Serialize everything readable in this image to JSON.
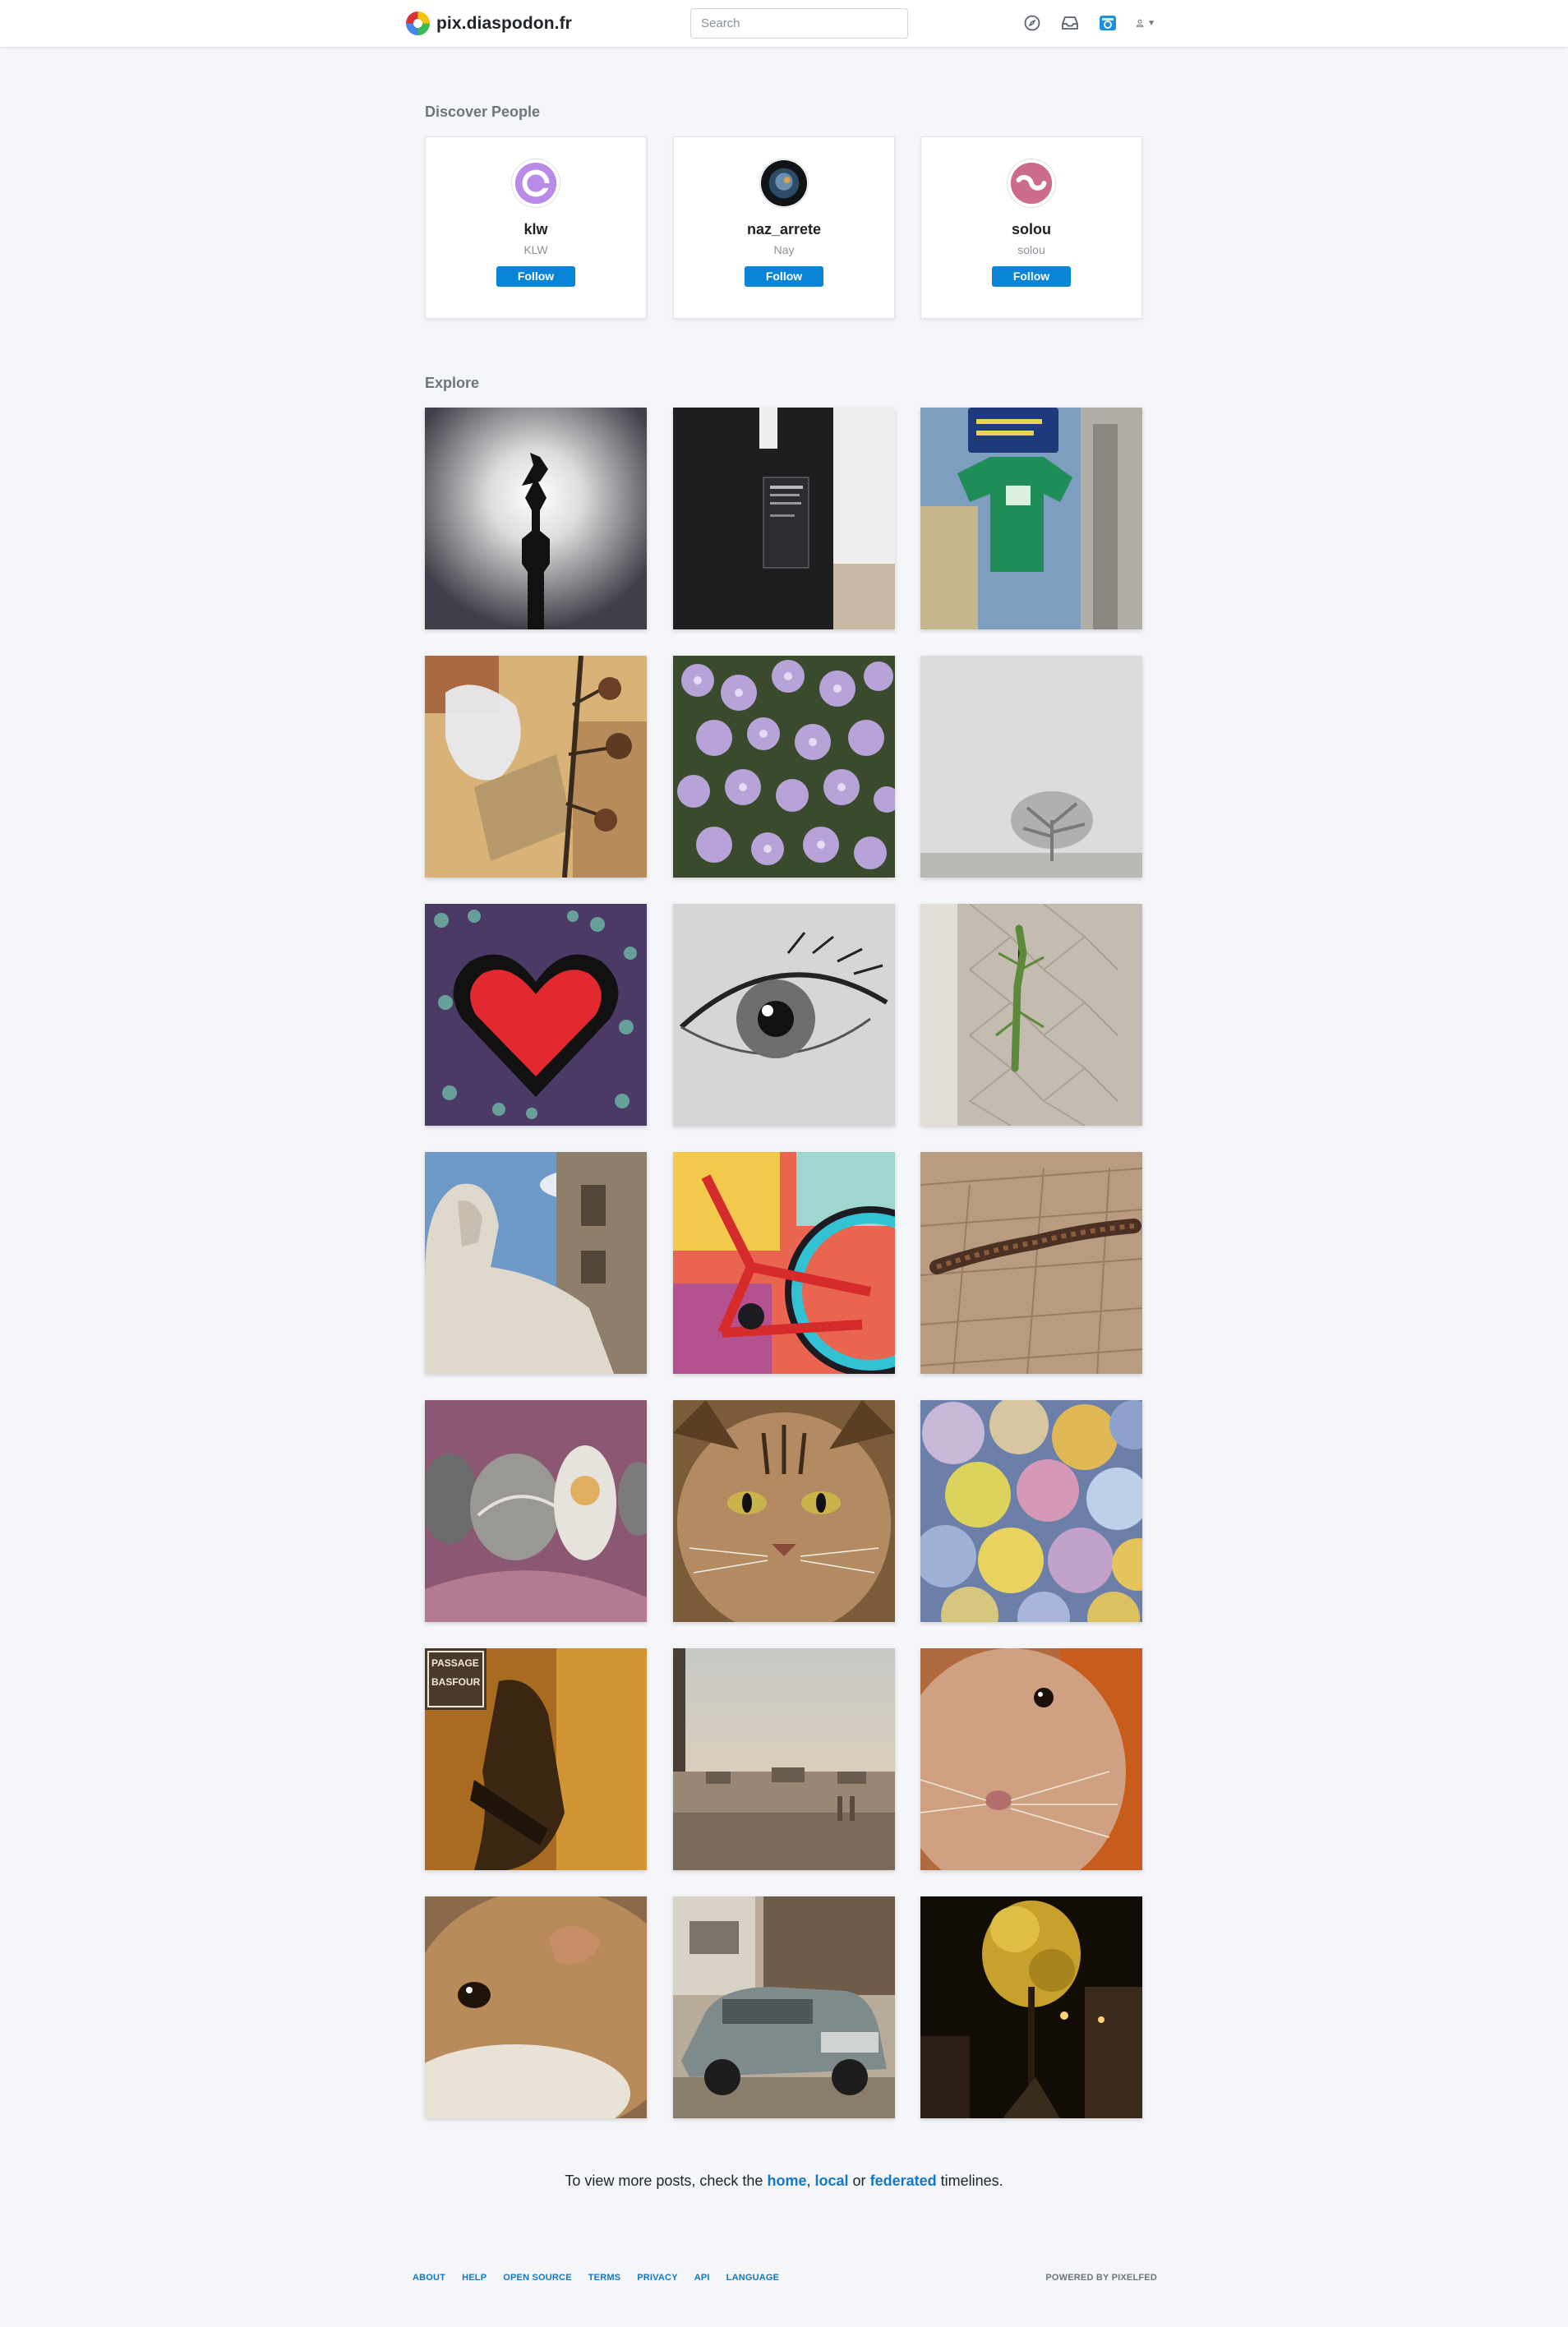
{
  "navbar": {
    "brand": "pix.diaspodon.fr",
    "search_placeholder": "Search",
    "icons": [
      "compass-icon",
      "inbox-icon",
      "camera-icon",
      "user-icon"
    ]
  },
  "discover": {
    "title": "Discover People",
    "people": [
      {
        "username": "klw",
        "display_name": "KLW",
        "follow_label": "Follow",
        "avatar_color": "#b57ee6"
      },
      {
        "username": "naz_arrete",
        "display_name": "Nay",
        "follow_label": "Follow",
        "avatar_color": "#1f2c3a"
      },
      {
        "username": "solou",
        "display_name": "solou",
        "follow_label": "Follow",
        "avatar_color": "#c96a86"
      }
    ]
  },
  "explore": {
    "title": "Explore",
    "tiles": [
      "statue-silhouette",
      "vhs-cassette",
      "street-sign-green-shirt",
      "tree-with-plastic-bag",
      "purple-flowers",
      "foggy-tree",
      "red-heart-mural",
      "eye-drawing",
      "praying-mantis",
      "sphinx-statue",
      "colorful-bicycle-painting",
      "caterpillar-on-wood",
      "painted-stones",
      "tabby-cat",
      "plums",
      "passage-basfour-mural",
      "city-ruins-sunset",
      "hamster-closeup",
      "guinea-pig-closeup",
      "old-car",
      "tree-at-night"
    ]
  },
  "more_posts": {
    "prefix": "To view more posts, check the",
    "home": "home",
    "comma": ",",
    "local": "local",
    "or": "or",
    "federated": "federated",
    "suffix": "timelines."
  },
  "footer": {
    "links": [
      "ABOUT",
      "HELP",
      "OPEN SOURCE",
      "TERMS",
      "PRIVACY",
      "API",
      "LANGUAGE"
    ],
    "powered_by": "POWERED BY PIXELFED"
  },
  "colors": {
    "accent": "#0a84d6",
    "link": "#1477c6",
    "background": "#f4f6f9"
  }
}
